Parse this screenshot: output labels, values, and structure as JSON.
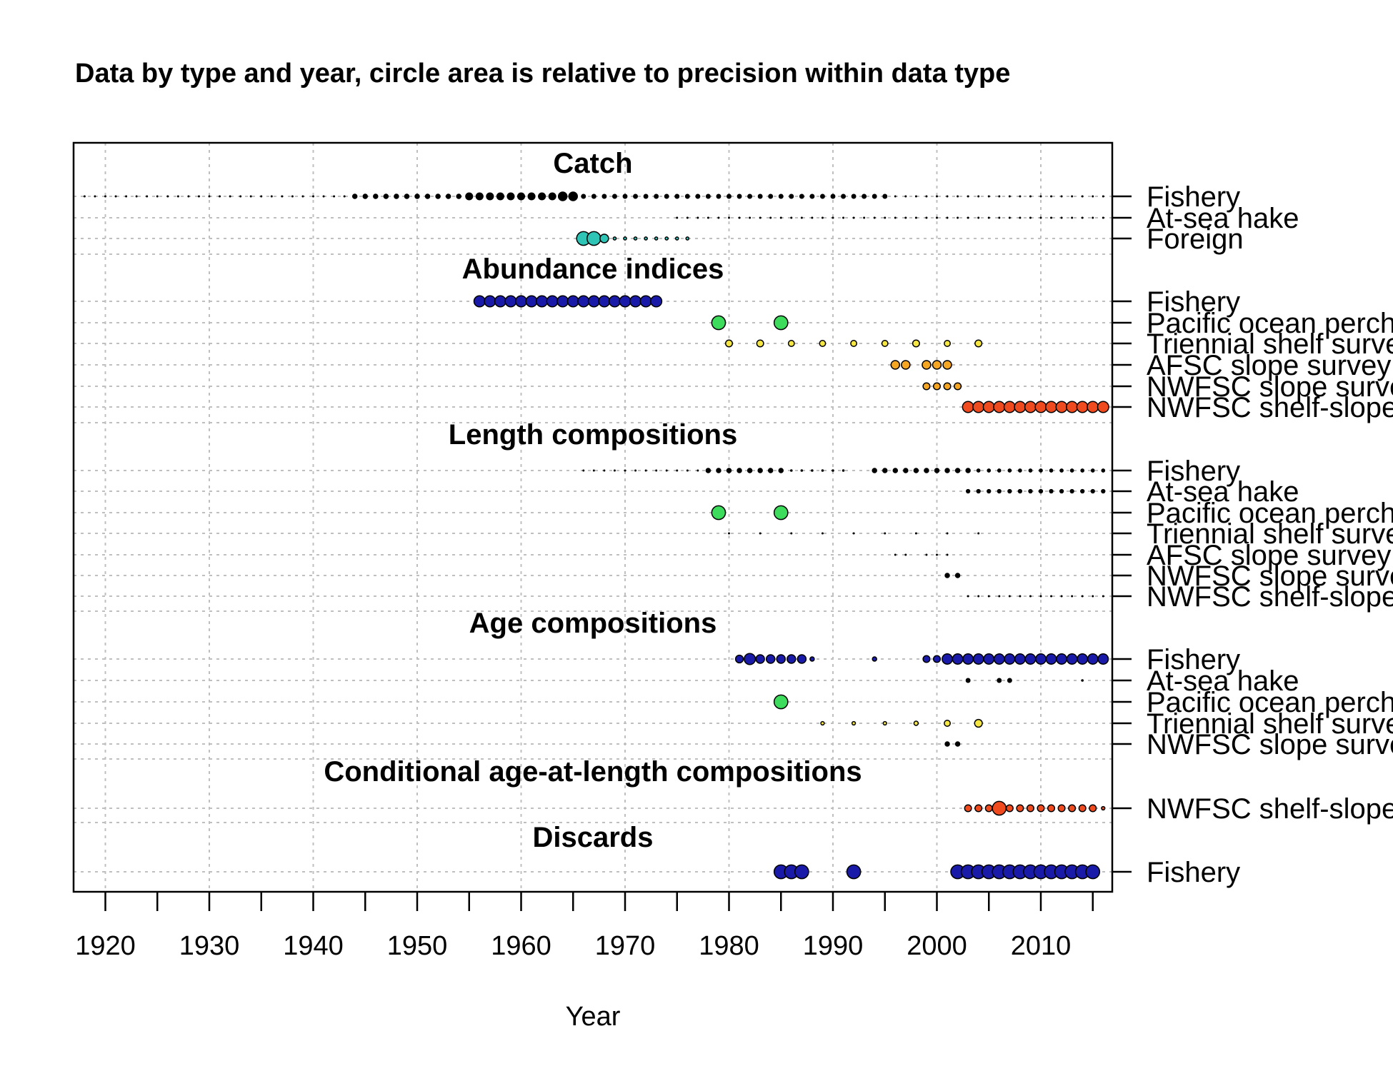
{
  "chart_data": {
    "type": "scatter",
    "title": "Data by type and year, circle area is relative to precision within data type",
    "xlabel": "Year",
    "ylabel": "",
    "xlim": [
      1917,
      2017
    ],
    "x_ticks": [
      1920,
      1930,
      1940,
      1950,
      1960,
      1970,
      1980,
      1990,
      2000,
      2010
    ],
    "grid": true,
    "colors": {
      "dark_blue": "#1a1aa8",
      "teal": "#2ec4b6",
      "green": "#3ddc5c",
      "yellow": "#f5e642",
      "orange": "#f5a623",
      "red_orange": "#f04a1f",
      "black": "#000000"
    },
    "sections": [
      {
        "title": "Catch",
        "rows": [
          {
            "fleet": "Fishery",
            "color": "black",
            "points": [
              {
                "x": [
                  1918,
                  2016
                ],
                "size": 0.25
              },
              {
                "x": [
                  1944,
                  1954
                ],
                "size": 0.5
              },
              {
                "x": [
                  1955,
                  1963
                ],
                "size": 0.8
              },
              {
                "x": [
                  1964,
                  1965
                ],
                "size": 1.0
              },
              {
                "x": [
                  1966,
                  1995
                ],
                "size": 0.45
              }
            ]
          },
          {
            "fleet": "At-sea hake",
            "color": "black",
            "points": [
              {
                "x": [
                  1975,
                  2016
                ],
                "size": 0.25
              }
            ]
          },
          {
            "fleet": "Foreign",
            "color": "teal",
            "points": [
              {
                "x": [
                  1966,
                  1967
                ],
                "size": 1.6
              },
              {
                "x": [
                  1968,
                  1968
                ],
                "size": 1.0
              },
              {
                "x": [
                  1969,
                  1976
                ],
                "size": 0.35
              }
            ]
          }
        ]
      },
      {
        "title": "Abundance indices",
        "rows": [
          {
            "fleet": "Fishery",
            "color": "dark_blue",
            "points": [
              {
                "x": [
                  1956,
                  1973
                ],
                "size": 1.3
              }
            ]
          },
          {
            "fleet": "Pacific ocean perch",
            "color": "green",
            "points": [
              {
                "x": [
                  1979,
                  1979
                ],
                "size": 1.6
              },
              {
                "x": [
                  1985,
                  1985
                ],
                "size": 1.6
              }
            ]
          },
          {
            "fleet": "Triennial shelf survey",
            "color": "yellow",
            "points": [
              {
                "x": [
                  1980,
                  1980
                ],
                "size": 0.8
              },
              {
                "x": [
                  1983,
                  1983
                ],
                "size": 0.8
              },
              {
                "x": [
                  1986,
                  1986
                ],
                "size": 0.7
              },
              {
                "x": [
                  1989,
                  1989
                ],
                "size": 0.7
              },
              {
                "x": [
                  1992,
                  1992
                ],
                "size": 0.7
              },
              {
                "x": [
                  1995,
                  1995
                ],
                "size": 0.7
              },
              {
                "x": [
                  1998,
                  1998
                ],
                "size": 0.8
              },
              {
                "x": [
                  2001,
                  2001
                ],
                "size": 0.7
              },
              {
                "x": [
                  2004,
                  2004
                ],
                "size": 0.8
              }
            ]
          },
          {
            "fleet": "AFSC slope survey",
            "color": "orange",
            "points": [
              {
                "x": [
                  1996,
                  1997
                ],
                "size": 1.0
              },
              {
                "x": [
                  1999,
                  2001
                ],
                "size": 1.0
              }
            ]
          },
          {
            "fleet": "NWFSC slope survey",
            "color": "orange",
            "points": [
              {
                "x": [
                  1999,
                  2002
                ],
                "size": 0.8
              }
            ]
          },
          {
            "fleet": "NWFSC shelf-slope survey",
            "color": "red_orange",
            "points": [
              {
                "x": [
                  2003,
                  2016
                ],
                "size": 1.3
              }
            ]
          }
        ]
      },
      {
        "title": "Length compositions",
        "rows": [
          {
            "fleet": "Fishery",
            "color": "black",
            "points": [
              {
                "x": [
                  1966,
                  1977
                ],
                "size": 0.25
              },
              {
                "x": [
                  1978,
                  1985
                ],
                "size": 0.5
              },
              {
                "x": [
                  1986,
                  1991
                ],
                "size": 0.3
              },
              {
                "x": [
                  1994,
                  2003
                ],
                "size": 0.5
              },
              {
                "x": [
                  2004,
                  2016
                ],
                "size": 0.35
              }
            ]
          },
          {
            "fleet": "At-sea hake",
            "color": "black",
            "points": [
              {
                "x": [
                  2003,
                  2016
                ],
                "size": 0.4
              }
            ]
          },
          {
            "fleet": "Pacific ocean perch",
            "color": "green",
            "points": [
              {
                "x": [
                  1979,
                  1979
                ],
                "size": 1.6
              },
              {
                "x": [
                  1985,
                  1985
                ],
                "size": 1.6
              }
            ]
          },
          {
            "fleet": "Triennial shelf survey",
            "color": "black",
            "points": [
              {
                "x": [
                  1980,
                  1980
                ],
                "size": 0.25
              },
              {
                "x": [
                  1983,
                  1983
                ],
                "size": 0.25
              },
              {
                "x": [
                  1986,
                  1986
                ],
                "size": 0.25
              },
              {
                "x": [
                  1989,
                  1989
                ],
                "size": 0.25
              },
              {
                "x": [
                  1992,
                  1992
                ],
                "size": 0.25
              },
              {
                "x": [
                  1995,
                  1995
                ],
                "size": 0.25
              },
              {
                "x": [
                  1998,
                  1998
                ],
                "size": 0.25
              },
              {
                "x": [
                  2001,
                  2001
                ],
                "size": 0.25
              },
              {
                "x": [
                  2004,
                  2004
                ],
                "size": 0.25
              }
            ]
          },
          {
            "fleet": "AFSC slope survey",
            "color": "black",
            "points": [
              {
                "x": [
                  1996,
                  1997
                ],
                "size": 0.25
              },
              {
                "x": [
                  1999,
                  2001
                ],
                "size": 0.25
              }
            ]
          },
          {
            "fleet": "NWFSC slope survey",
            "color": "black",
            "points": [
              {
                "x": [
                  2001,
                  2002
                ],
                "size": 0.5
              }
            ]
          },
          {
            "fleet": "NWFSC shelf-slope survey",
            "color": "black",
            "points": [
              {
                "x": [
                  2003,
                  2016
                ],
                "size": 0.25
              }
            ]
          }
        ]
      },
      {
        "title": "Age compositions",
        "rows": [
          {
            "fleet": "Fishery",
            "color": "dark_blue",
            "points": [
              {
                "x": [
                  1981,
                  1981
                ],
                "size": 0.9
              },
              {
                "x": [
                  1982,
                  1982
                ],
                "size": 1.3
              },
              {
                "x": [
                  1983,
                  1987
                ],
                "size": 1.0
              },
              {
                "x": [
                  1988,
                  1988
                ],
                "size": 0.5
              },
              {
                "x": [
                  1994,
                  1994
                ],
                "size": 0.5
              },
              {
                "x": [
                  1999,
                  2000
                ],
                "size": 0.8
              },
              {
                "x": [
                  2001,
                  2016
                ],
                "size": 1.2
              }
            ]
          },
          {
            "fleet": "At-sea hake",
            "color": "black",
            "points": [
              {
                "x": [
                  2003,
                  2003
                ],
                "size": 0.45
              },
              {
                "x": [
                  2006,
                  2007
                ],
                "size": 0.45
              },
              {
                "x": [
                  2014,
                  2014
                ],
                "size": 0.3
              }
            ]
          },
          {
            "fleet": "Pacific ocean perch",
            "color": "green",
            "points": [
              {
                "x": [
                  1985,
                  1985
                ],
                "size": 1.6
              }
            ]
          },
          {
            "fleet": "Triennial shelf survey",
            "color": "yellow",
            "points": [
              {
                "x": [
                  1989,
                  1989
                ],
                "size": 0.4
              },
              {
                "x": [
                  1992,
                  1992
                ],
                "size": 0.4
              },
              {
                "x": [
                  1995,
                  1995
                ],
                "size": 0.4
              },
              {
                "x": [
                  1998,
                  1998
                ],
                "size": 0.5
              },
              {
                "x": [
                  2001,
                  2001
                ],
                "size": 0.7
              },
              {
                "x": [
                  2004,
                  2004
                ],
                "size": 0.9
              }
            ]
          },
          {
            "fleet": "NWFSC slope survey",
            "color": "black",
            "points": [
              {
                "x": [
                  2001,
                  2002
                ],
                "size": 0.5
              }
            ]
          }
        ]
      },
      {
        "title": "Conditional age-at-length compositions",
        "rows": [
          {
            "fleet": "NWFSC shelf-slope survey",
            "color": "red_orange",
            "points": [
              {
                "x": [
                  2003,
                  2005
                ],
                "size": 0.8
              },
              {
                "x": [
                  2006,
                  2006
                ],
                "size": 1.6
              },
              {
                "x": [
                  2007,
                  2015
                ],
                "size": 0.8
              },
              {
                "x": [
                  2016,
                  2016
                ],
                "size": 0.4
              }
            ]
          }
        ]
      },
      {
        "title": "Discards",
        "rows": [
          {
            "fleet": "Fishery",
            "color": "dark_blue",
            "points": [
              {
                "x": [
                  1985,
                  1987
                ],
                "size": 1.6
              },
              {
                "x": [
                  1992,
                  1992
                ],
                "size": 1.6
              },
              {
                "x": [
                  2002,
                  2015
                ],
                "size": 1.6
              }
            ]
          }
        ]
      }
    ]
  }
}
